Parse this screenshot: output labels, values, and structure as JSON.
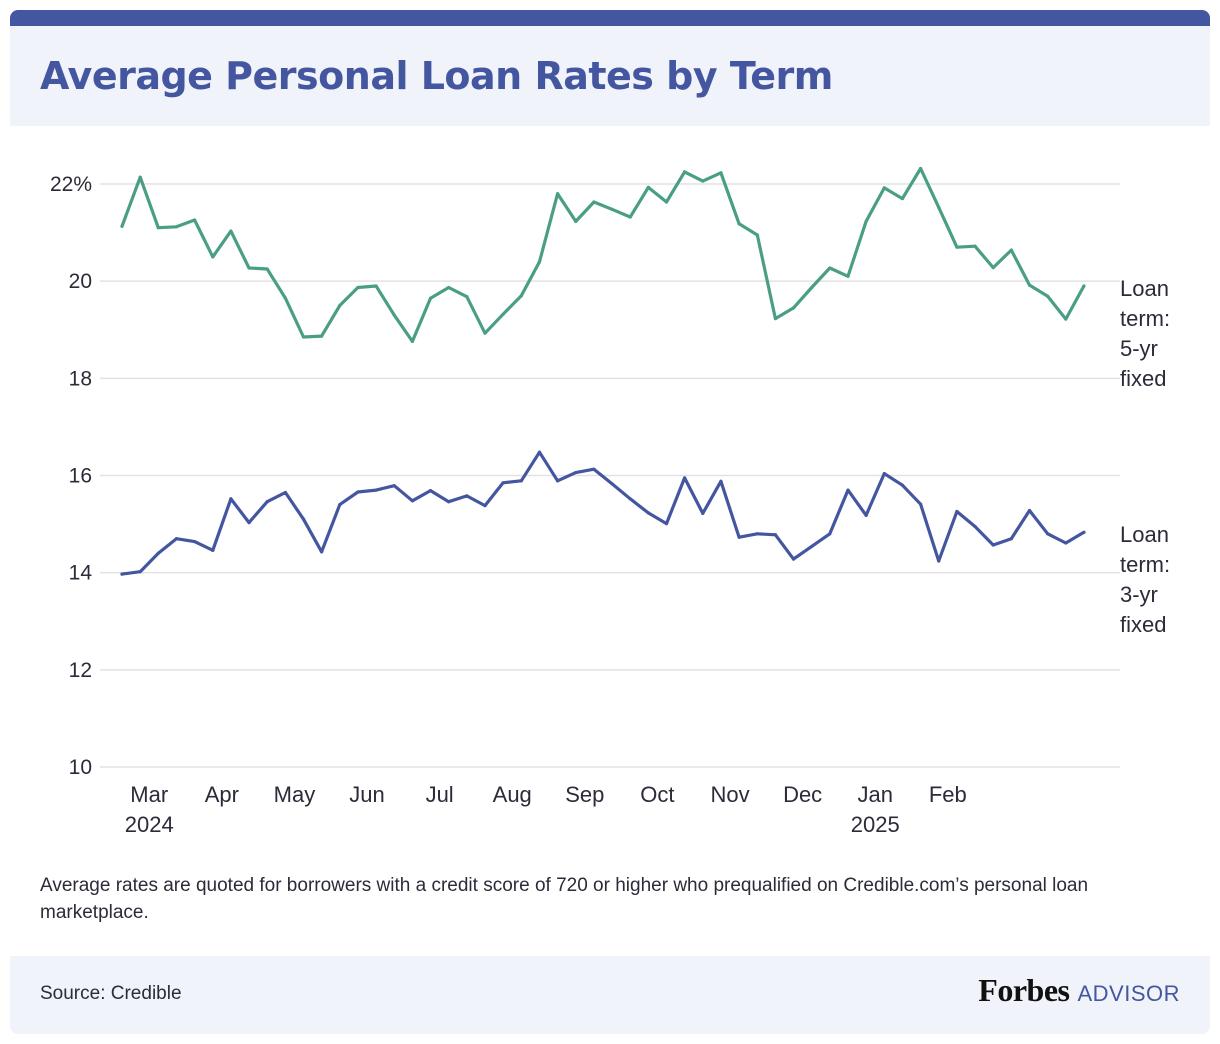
{
  "title": "Average Personal Loan Rates by Term",
  "footnote": "Average rates are quoted for borrowers with a credit score of 720 or higher who prequalified on Credible.com’s personal loan marketplace.",
  "footer": {
    "source": "Source: Credible",
    "brand_name": "Forbes",
    "brand_sub": "ADVISOR"
  },
  "colors": {
    "five_year": "#4a9e86",
    "three_year": "#4456a0",
    "grid": "#e2e2e6",
    "title": "#4456a0"
  },
  "chart_data": {
    "type": "line",
    "title": "Average Personal Loan Rates by Term",
    "ylim": [
      10,
      22
    ],
    "y_ticks": [
      {
        "value": 22,
        "label": "22%"
      },
      {
        "value": 20,
        "label": "20"
      },
      {
        "value": 18,
        "label": "18"
      },
      {
        "value": 16,
        "label": "16"
      },
      {
        "value": 14,
        "label": "14"
      },
      {
        "value": 12,
        "label": "12"
      },
      {
        "value": 10,
        "label": "10"
      }
    ],
    "x_ticks": [
      {
        "index": 1.5,
        "label": "Mar",
        "sublabel": "2024"
      },
      {
        "index": 5.5,
        "label": "Apr",
        "sublabel": ""
      },
      {
        "index": 9.5,
        "label": "May",
        "sublabel": ""
      },
      {
        "index": 13.5,
        "label": "Jun",
        "sublabel": ""
      },
      {
        "index": 17.5,
        "label": "Jul",
        "sublabel": ""
      },
      {
        "index": 21.5,
        "label": "Aug",
        "sublabel": ""
      },
      {
        "index": 25.5,
        "label": "Sep",
        "sublabel": ""
      },
      {
        "index": 29.5,
        "label": "Oct",
        "sublabel": ""
      },
      {
        "index": 33.5,
        "label": "Nov",
        "sublabel": ""
      },
      {
        "index": 37.5,
        "label": "Dec",
        "sublabel": ""
      },
      {
        "index": 41.5,
        "label": "Jan",
        "sublabel": "2025"
      },
      {
        "index": 45.5,
        "label": "Feb",
        "sublabel": ""
      }
    ],
    "grid": true,
    "legend_placement": "inline-right",
    "series": [
      {
        "name": "Loan term: 5-yr fixed",
        "label_lines": [
          "Loan",
          "term:",
          "5-yr",
          "fixed"
        ],
        "color": "#4a9e86",
        "values": [
          21.13,
          22.14,
          21.1,
          21.12,
          21.26,
          20.5,
          21.03,
          20.27,
          20.25,
          19.65,
          18.85,
          18.87,
          19.5,
          19.87,
          19.9,
          19.3,
          18.76,
          19.65,
          19.87,
          19.68,
          18.93,
          19.32,
          19.7,
          20.4,
          21.8,
          21.23,
          21.63,
          21.48,
          21.32,
          21.93,
          21.63,
          22.25,
          22.06,
          22.23,
          21.18,
          20.95,
          19.23,
          19.45,
          19.87,
          20.27,
          20.1,
          21.23,
          21.92,
          21.7,
          22.32,
          21.52,
          20.7,
          20.72,
          20.28,
          20.64,
          19.92,
          19.69,
          19.22,
          19.9
        ]
      },
      {
        "name": "Loan term: 3-yr fixed",
        "label_lines": [
          "Loan",
          "term:",
          "3-yr",
          "fixed"
        ],
        "color": "#4456a0",
        "values": [
          13.97,
          14.02,
          14.4,
          14.7,
          14.64,
          14.46,
          15.52,
          15.03,
          15.46,
          15.65,
          15.1,
          14.43,
          15.4,
          15.66,
          15.7,
          15.79,
          15.48,
          15.69,
          15.46,
          15.58,
          15.38,
          15.85,
          15.89,
          16.48,
          15.89,
          16.06,
          16.13,
          15.83,
          15.52,
          15.23,
          15.01,
          15.95,
          15.22,
          15.88,
          14.73,
          14.8,
          14.78,
          14.28,
          14.54,
          14.8,
          15.7,
          15.18,
          16.04,
          15.8,
          15.41,
          14.24,
          15.26,
          14.95,
          14.57,
          14.7,
          15.28,
          14.8,
          14.61,
          14.83
        ]
      }
    ]
  }
}
